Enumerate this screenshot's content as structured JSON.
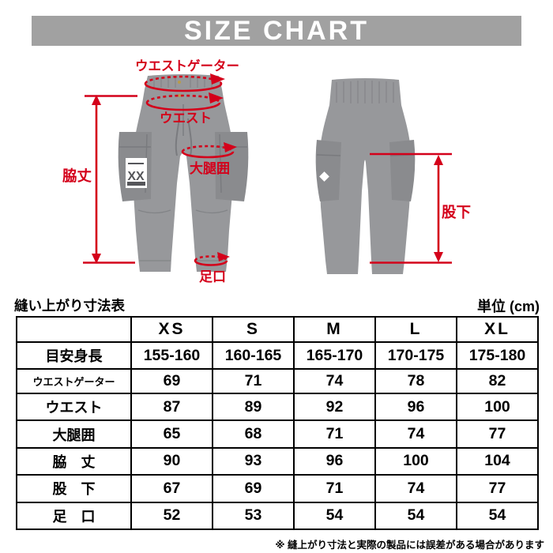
{
  "header": {
    "title": "SIZE CHART"
  },
  "colors": {
    "banner_gray": "#a1a1a1",
    "annotation_red": "#d4001a",
    "pants_gray": "#97989b",
    "pants_dark": "#8a8b8e",
    "pants_darker": "#6e6f73"
  },
  "diagram": {
    "labels": {
      "waist_gaiter": "ウエストゲーター",
      "waist": "ウエスト",
      "thigh": "大腿囲",
      "side_length": "脇丈",
      "leg_opening": "足口",
      "inseam": "股下"
    },
    "logo_text": "XX"
  },
  "table": {
    "title": "縫い上がり寸法表",
    "unit": "単位 (cm)",
    "columns": [
      "XS",
      "S",
      "M",
      "L",
      "XL"
    ],
    "rows": [
      {
        "label": "目安身長",
        "values": [
          "155-160",
          "160-165",
          "165-170",
          "170-175",
          "175-180"
        ]
      },
      {
        "label": "ウエストゲーター",
        "values": [
          "69",
          "71",
          "74",
          "78",
          "82"
        ]
      },
      {
        "label": "ウエスト",
        "values": [
          "87",
          "89",
          "92",
          "96",
          "100"
        ]
      },
      {
        "label": "大腿囲",
        "values": [
          "65",
          "68",
          "71",
          "74",
          "77"
        ]
      },
      {
        "label": "脇　丈",
        "values": [
          "90",
          "93",
          "96",
          "100",
          "104"
        ]
      },
      {
        "label": "股　下",
        "values": [
          "67",
          "69",
          "71",
          "74",
          "77"
        ]
      },
      {
        "label": "足　口",
        "values": [
          "52",
          "53",
          "54",
          "54",
          "54"
        ]
      }
    ],
    "footnote": "※ 縫上がり寸法と実際の製品には誤差がある場合があります"
  },
  "chart_data": {
    "type": "table",
    "title": "縫い上がり寸法表 (単位 cm)",
    "columns": [
      "XS",
      "S",
      "M",
      "L",
      "XL"
    ],
    "rows": [
      {
        "label": "目安身長",
        "values": [
          "155-160",
          "160-165",
          "165-170",
          "170-175",
          "175-180"
        ]
      },
      {
        "label": "ウエストゲーター",
        "values": [
          69,
          71,
          74,
          78,
          82
        ]
      },
      {
        "label": "ウエスト",
        "values": [
          87,
          89,
          92,
          96,
          100
        ]
      },
      {
        "label": "大腿囲",
        "values": [
          65,
          68,
          71,
          74,
          77
        ]
      },
      {
        "label": "脇丈",
        "values": [
          90,
          93,
          96,
          100,
          104
        ]
      },
      {
        "label": "股下",
        "values": [
          67,
          69,
          71,
          74,
          77
        ]
      },
      {
        "label": "足口",
        "values": [
          52,
          53,
          54,
          54,
          54
        ]
      }
    ]
  }
}
